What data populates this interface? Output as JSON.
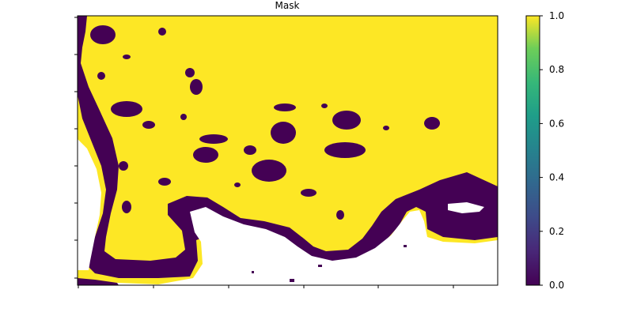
{
  "chart_data": {
    "type": "heatmap",
    "title": "Mask",
    "xlabel": "",
    "ylabel": "",
    "x_tick_labels": [],
    "y_tick_labels": [],
    "value_range": [
      0,
      1
    ],
    "colormap": "viridis",
    "colors": {
      "low": "#440154",
      "high": "#fde725",
      "no_data": "#ffffff"
    },
    "colorbar": {
      "ticks": [
        0.0,
        0.2,
        0.4,
        0.6,
        0.8,
        1.0
      ],
      "tick_labels": [
        "0.0",
        "0.2",
        "0.4",
        "0.6",
        "0.8",
        "1.0"
      ],
      "position": "right"
    },
    "grid": false,
    "mask_regions": {
      "description_values": "1 = land (yellow), 0 = masked border (purple), blank = no data"
    }
  }
}
